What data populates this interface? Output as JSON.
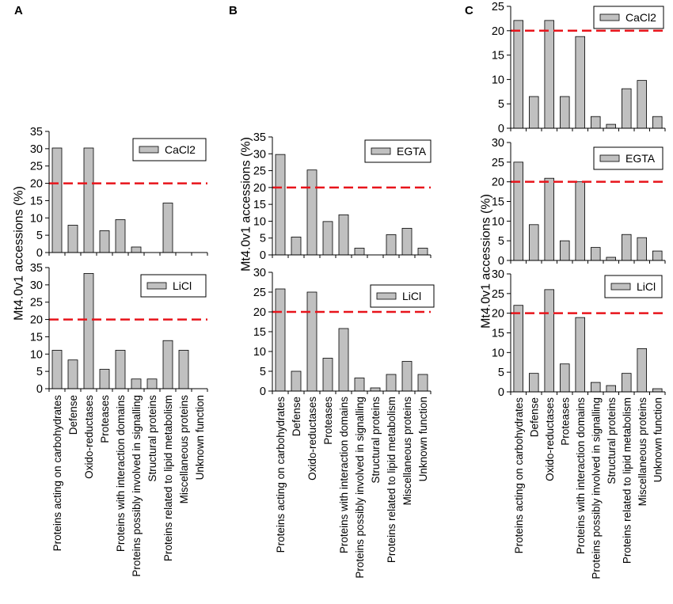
{
  "chart_data": {
    "type": "bar",
    "threshold": 20,
    "threshold_color": "#e8141b",
    "bar_color": "#c0c0c0",
    "categories": [
      "Proteins acting on carbohydrates",
      "Defense",
      "Oxido-reductases",
      "Proteases",
      "Proteins with interaction domains",
      "Proteins possibly involved in signalling",
      "Structural proteins",
      "Proteins related to lipid metabolism",
      "Miscellaneous proteins",
      "Unknown function"
    ],
    "panels": [
      {
        "letter": "A",
        "ylabel": "Mt4.0v1 accessions (%)",
        "subplots": [
          {
            "legend": "CaCl2",
            "ylim": [
              0,
              35
            ],
            "ticks": [
              0,
              5,
              10,
              15,
              20,
              25,
              30,
              35
            ],
            "values": [
              30.2,
              7.9,
              30.2,
              6.3,
              9.5,
              1.6,
              0,
              14.3,
              0,
              0
            ]
          },
          {
            "legend": "LiCl",
            "ylim": [
              0,
              35
            ],
            "ticks": [
              0,
              5,
              10,
              15,
              20,
              25,
              30,
              35
            ],
            "values": [
              11.1,
              8.3,
              33.3,
              5.6,
              11.1,
              2.8,
              2.8,
              13.9,
              11.1,
              0
            ]
          }
        ]
      },
      {
        "letter": "B",
        "ylabel": "Mt4.0v1 accessions (%)",
        "subplots": [
          {
            "legend": "EGTA",
            "ylim": [
              0,
              35
            ],
            "ticks": [
              0,
              5,
              10,
              15,
              20,
              25,
              30,
              35
            ],
            "values": [
              29.8,
              5.3,
              25.2,
              9.9,
              11.9,
              2.0,
              0,
              6.0,
              7.9,
              2.0
            ]
          },
          {
            "legend": "LiCl",
            "ylim": [
              0,
              30
            ],
            "ticks": [
              0,
              5,
              10,
              15,
              20,
              25,
              30
            ],
            "values": [
              25.8,
              5.0,
              25.0,
              8.3,
              15.8,
              3.3,
              0.8,
              4.2,
              7.5,
              4.2
            ]
          }
        ]
      },
      {
        "letter": "C",
        "ylabel": "Mt4.0v1 accessions (%)",
        "subplots": [
          {
            "legend": "CaCl2",
            "ylim": [
              0,
              25
            ],
            "ticks": [
              0,
              5,
              10,
              15,
              20,
              25
            ],
            "values": [
              22.1,
              6.5,
              22.1,
              6.5,
              18.8,
              2.4,
              0.8,
              8.1,
              9.8,
              2.4
            ]
          },
          {
            "legend": "EGTA",
            "ylim": [
              0,
              30
            ],
            "ticks": [
              0,
              5,
              10,
              15,
              20,
              25,
              30
            ],
            "values": [
              25.0,
              9.1,
              20.9,
              5.0,
              20.0,
              3.3,
              0.8,
              6.6,
              5.8,
              2.4
            ]
          },
          {
            "legend": "LiCl",
            "ylim": [
              0,
              30
            ],
            "ticks": [
              0,
              5,
              10,
              15,
              20,
              25,
              30
            ],
            "values": [
              22.0,
              4.7,
              26.0,
              7.1,
              18.9,
              2.4,
              1.6,
              4.7,
              11.0,
              0.8
            ]
          }
        ]
      }
    ]
  }
}
